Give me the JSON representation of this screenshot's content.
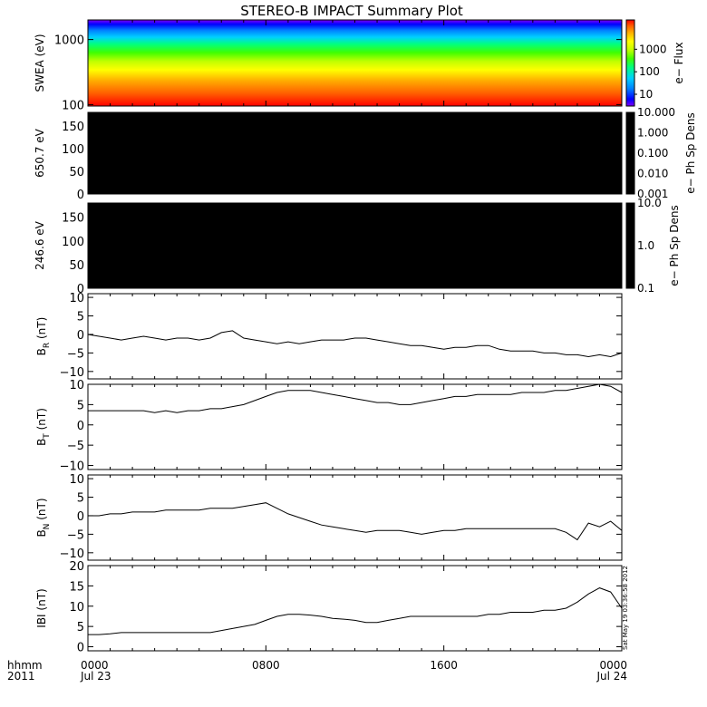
{
  "title": "STEREO-B IMPACT Summary Plot",
  "time_axis": {
    "header_line1": "hhmm",
    "header_line2": "2011",
    "ticks": [
      {
        "top": "0000",
        "bottom": "Jul 23",
        "hour": 0
      },
      {
        "top": "0800",
        "bottom": "",
        "hour": 8
      },
      {
        "top": "1600",
        "bottom": "",
        "hour": 16
      },
      {
        "top": "0000",
        "bottom": "Jul 24",
        "hour": 24
      }
    ],
    "range_hours": [
      0,
      24
    ]
  },
  "timestamp": "Sat May 19 03:36:58 2012",
  "panels": [
    {
      "id": "swea",
      "ylabel": "SWEA (eV)",
      "type": "spectrogram",
      "yscale": "log",
      "yticks": [
        {
          "v": 100,
          "label": "100"
        },
        {
          "v": 1000,
          "label": "1000"
        }
      ],
      "ylim": [
        95,
        2000
      ],
      "colorbar": {
        "label": "e− Flux",
        "scale": "log",
        "range": [
          3,
          20000
        ],
        "ticks": [
          {
            "v": 10,
            "label": "10"
          },
          {
            "v": 100,
            "label": "100"
          },
          {
            "v": 1000,
            "label": "1000"
          }
        ],
        "colors": [
          "#8000ff",
          "#0000ff",
          "#0080ff",
          "#00d0ff",
          "#00ff80",
          "#40ff00",
          "#c0ff00",
          "#ffff00",
          "#ffb000",
          "#ff6000",
          "#ff0000"
        ]
      }
    },
    {
      "id": "pad650",
      "ylabel": "650.7 eV",
      "type": "pitch-angle",
      "yticks": [
        {
          "v": 0,
          "label": "0"
        },
        {
          "v": 50,
          "label": "50"
        },
        {
          "v": 100,
          "label": "100"
        },
        {
          "v": 150,
          "label": "150"
        }
      ],
      "ylim": [
        0,
        180
      ],
      "fill_color": "#000000",
      "colorbar": {
        "label": "e− Ph Sp Dens",
        "scale": "log",
        "ticks": [
          "10.000",
          "1.000",
          "0.100",
          "0.010",
          "0.001"
        ],
        "fill_color": "#000000"
      }
    },
    {
      "id": "pad246",
      "ylabel": "246.6 eV",
      "type": "pitch-angle",
      "yticks": [
        {
          "v": 0,
          "label": "0"
        },
        {
          "v": 50,
          "label": "50"
        },
        {
          "v": 100,
          "label": "100"
        },
        {
          "v": 150,
          "label": "150"
        }
      ],
      "ylim": [
        0,
        180
      ],
      "fill_color": "#000000",
      "colorbar": {
        "label": "e− Ph Sp Dens",
        "scale": "log",
        "ticks": [
          "10.0",
          "1.0",
          "0.1"
        ],
        "fill_color": "#000000"
      }
    },
    {
      "id": "br",
      "ylabel_main": "B",
      "ylabel_sub": "R",
      "ylabel_unit": "(nT)",
      "type": "line",
      "ylim": [
        -12,
        11
      ],
      "yticks": [
        {
          "v": 10,
          "label": "10"
        },
        {
          "v": 5,
          "label": "5"
        },
        {
          "v": 0,
          "label": "0"
        },
        {
          "v": -5,
          "label": "−5"
        },
        {
          "v": -10,
          "label": "−10"
        }
      ]
    },
    {
      "id": "bt",
      "ylabel_main": "B",
      "ylabel_sub": "T",
      "ylabel_unit": "(nT)",
      "type": "line",
      "ylim": [
        -11,
        10
      ],
      "yticks": [
        {
          "v": 10,
          "label": "10"
        },
        {
          "v": 5,
          "label": "5"
        },
        {
          "v": 0,
          "label": "0"
        },
        {
          "v": -5,
          "label": "−5"
        },
        {
          "v": -10,
          "label": "−10"
        }
      ]
    },
    {
      "id": "bn",
      "ylabel_main": "B",
      "ylabel_sub": "N",
      "ylabel_unit": "(nT)",
      "type": "line",
      "ylim": [
        -12,
        11
      ],
      "yticks": [
        {
          "v": 10,
          "label": "10"
        },
        {
          "v": 5,
          "label": "5"
        },
        {
          "v": 0,
          "label": "0"
        },
        {
          "v": -5,
          "label": "−5"
        },
        {
          "v": -10,
          "label": "−10"
        }
      ]
    },
    {
      "id": "bmag",
      "ylabel_main": "IBI",
      "ylabel_sub": "",
      "ylabel_unit": "(nT)",
      "type": "line",
      "ylim": [
        -1,
        20
      ],
      "yticks": [
        {
          "v": 20,
          "label": "20"
        },
        {
          "v": 15,
          "label": "15"
        },
        {
          "v": 10,
          "label": "10"
        },
        {
          "v": 5,
          "label": "5"
        },
        {
          "v": 0,
          "label": "0"
        }
      ]
    }
  ],
  "chart_data": {
    "type": "line",
    "x_unit": "hours since 0000 Jul 23",
    "x": [
      0,
      0.5,
      1,
      1.5,
      2,
      2.5,
      3,
      3.5,
      4,
      4.5,
      5,
      5.5,
      6,
      6.5,
      7,
      7.5,
      8,
      8.5,
      9,
      9.5,
      10,
      10.5,
      11,
      11.5,
      12,
      12.5,
      13,
      13.5,
      14,
      14.5,
      15,
      15.5,
      16,
      16.5,
      17,
      17.5,
      18,
      18.5,
      19,
      19.5,
      20,
      20.5,
      21,
      21.5,
      22,
      22.5,
      23,
      23.5,
      24
    ],
    "series": [
      {
        "name": "BR",
        "values": [
          0,
          -0.5,
          -1,
          -1.5,
          -1,
          -0.5,
          -1,
          -1.5,
          -1,
          -1,
          -1.5,
          -1,
          0.5,
          1,
          -1,
          -1.5,
          -2,
          -2.5,
          -2,
          -2.5,
          -2,
          -1.5,
          -1.5,
          -1.5,
          -1,
          -1,
          -1.5,
          -2,
          -2.5,
          -3,
          -3,
          -3.5,
          -4,
          -3.5,
          -3.5,
          -3,
          -3,
          -4,
          -4.5,
          -4.5,
          -4.5,
          -5,
          -5,
          -5.5,
          -5.5,
          -6,
          -5.5,
          -6,
          -5
        ]
      },
      {
        "name": "BT",
        "values": [
          3.5,
          3.5,
          3.5,
          3.5,
          3.5,
          3.5,
          3,
          3.5,
          3,
          3.5,
          3.5,
          4,
          4,
          4.5,
          5,
          6,
          7,
          8,
          8.5,
          8.5,
          8.5,
          8,
          7.5,
          7,
          6.5,
          6,
          5.5,
          5.5,
          5,
          5,
          5.5,
          6,
          6.5,
          7,
          7,
          7.5,
          7.5,
          7.5,
          7.5,
          8,
          8,
          8,
          8.5,
          8.5,
          9,
          9.5,
          10,
          9.5,
          8
        ]
      },
      {
        "name": "BN",
        "values": [
          0,
          0,
          0.5,
          0.5,
          1,
          1,
          1,
          1.5,
          1.5,
          1.5,
          1.5,
          2,
          2,
          2,
          2.5,
          3,
          3.5,
          2,
          0.5,
          -0.5,
          -1.5,
          -2.5,
          -3,
          -3.5,
          -4,
          -4.5,
          -4,
          -4,
          -4,
          -4.5,
          -5,
          -4.5,
          -4,
          -4,
          -3.5,
          -3.5,
          -3.5,
          -3.5,
          -3.5,
          -3.5,
          -3.5,
          -3.5,
          -3.5,
          -4.5,
          -6.5,
          -2,
          -3,
          -1.5,
          -4
        ]
      },
      {
        "name": "IBI",
        "values": [
          3,
          3,
          3.2,
          3.5,
          3.5,
          3.5,
          3.5,
          3.5,
          3.5,
          3.5,
          3.5,
          3.5,
          4,
          4.5,
          5,
          5.5,
          6.5,
          7.5,
          8,
          8,
          7.8,
          7.5,
          7,
          6.8,
          6.5,
          6,
          6,
          6.5,
          7,
          7.5,
          7.5,
          7.5,
          7.5,
          7.5,
          7.5,
          7.5,
          8,
          8,
          8.5,
          8.5,
          8.5,
          9,
          9,
          9.5,
          11,
          13,
          14.5,
          13.5,
          9.5
        ]
      }
    ]
  }
}
